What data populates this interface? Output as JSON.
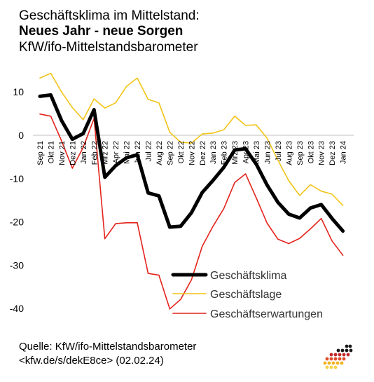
{
  "header": {
    "line1": "Geschäftsklima im Mittelstand:",
    "line2": "Neues Jahr - neue Sorgen",
    "line3": "KfW/ifo-Mittelstandsbarometer"
  },
  "footer": {
    "source": "Quelle: KfW/ifo-Mittelstandsbarometer",
    "link": "<kfw.de/s/dekE8ce> (02.02.24)"
  },
  "colors": {
    "klima": "#000000",
    "lage": "#F2C417",
    "erwartungen": "#E3231B",
    "zero_line": "#BFBFBF"
  },
  "chart_data": {
    "type": "line",
    "x": [
      "Sep 21",
      "Okt 21",
      "Nov 21",
      "Dez 21",
      "Jan 22",
      "Feb 22",
      "Mrz 22",
      "Apr 22",
      "Mai 22",
      "Jun 22",
      "Jul 22",
      "Aug 22",
      "Sep 22",
      "Okt 22",
      "Nov 22",
      "Dez 22",
      "Jan 23",
      "Feb 23",
      "Mrz 23",
      "Apr 23",
      "Mai 23",
      "Jun 23",
      "Jul 23",
      "Aug 23",
      "Sep 23",
      "Okt 23",
      "Nov 23",
      "Dez 23",
      "Jan 24"
    ],
    "x_tick_labels": [
      "Sep 21",
      "Okt 21",
      "Nov 21",
      "Dez 21",
      "Jan 22",
      "Feb 22",
      "Mrz 22",
      "Apr 22",
      "Mai 22",
      "Jun 22",
      "Jul 22",
      "Aug 22",
      "Sep 22",
      "Okt 22",
      "Nov 22",
      "Dez 22",
      "Jan 23",
      "Feb 23",
      "Mrz 23",
      "Apr 23",
      "Mai 23",
      "Jun 23",
      "Jul 23",
      "Aug 23",
      "Sep 23",
      "Okt 23",
      "Nov 23",
      "Dez 23",
      "Jan 24"
    ],
    "series": [
      {
        "name": "Geschäftsklima",
        "values": [
          9.0,
          9.3,
          3.4,
          -0.9,
          0.4,
          5.9,
          -9.7,
          -7.0,
          -5.2,
          -4.5,
          -13.3,
          -14.0,
          -21.2,
          -21.0,
          -17.9,
          -13.2,
          -10.4,
          -7.4,
          -3.4,
          -3.1,
          -6.7,
          -11.5,
          -15.5,
          -18.2,
          -19.1,
          -16.8,
          -16.0,
          -19.2,
          -22.1
        ]
      },
      {
        "name": "Geschäftslage",
        "values": [
          13.2,
          14.3,
          10.0,
          6.4,
          3.6,
          8.4,
          6.3,
          7.5,
          11.3,
          13.2,
          8.3,
          7.5,
          0.7,
          -1.6,
          -1.8,
          0.3,
          0.5,
          1.3,
          4.4,
          2.3,
          2.4,
          -0.7,
          -5.8,
          -10.5,
          -13.9,
          -11.4,
          -12.9,
          -13.6,
          -16.2
        ]
      },
      {
        "name": "Geschäftserwartungen",
        "values": [
          4.9,
          4.4,
          -1.3,
          -7.6,
          -2.8,
          3.9,
          -23.9,
          -20.4,
          -20.2,
          -20.2,
          -31.9,
          -32.3,
          -40.1,
          -37.9,
          -33.4,
          -25.6,
          -21.0,
          -16.9,
          -10.9,
          -8.9,
          -14.5,
          -20.3,
          -24.0,
          -25.0,
          -23.8,
          -21.6,
          -19.2,
          -24.4,
          -27.7
        ]
      }
    ],
    "ylim": [
      -40,
      10
    ],
    "y_ticks": [
      10,
      0,
      -10,
      -20,
      -30,
      -40
    ],
    "title": "",
    "xlabel": "",
    "ylabel": "",
    "grid": false,
    "legend_position": "bottom-right"
  }
}
